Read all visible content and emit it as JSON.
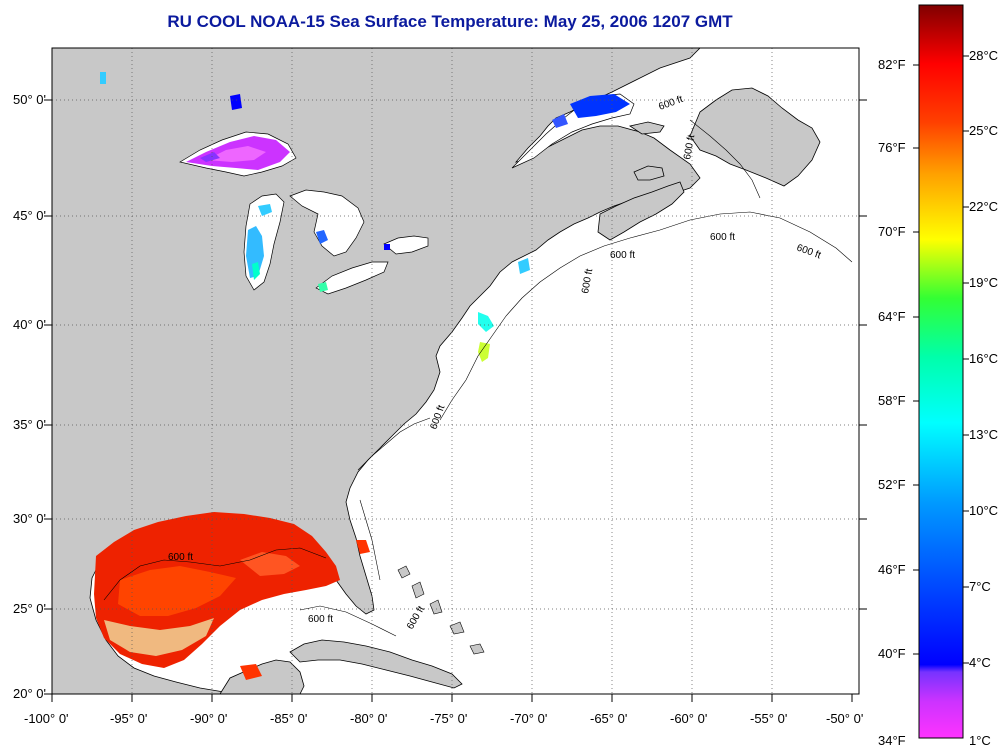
{
  "title": "RU COOL  NOAA-15  Sea Surface Temperature:  May 25, 2006 1207 GMT",
  "map": {
    "lon_range": [
      -100,
      -50
    ],
    "lat_range": [
      20,
      52.5
    ],
    "lon_labels": [
      "-100° 0'",
      "-95° 0'",
      "-90° 0'",
      "-85° 0'",
      "-80° 0'",
      "-75° 0'",
      "-70° 0'",
      "-65° 0'",
      "-60° 0'",
      "-55° 0'",
      "-50° 0'"
    ],
    "lat_labels": [
      "50° 0'",
      "45° 0'",
      "40° 0'",
      "35° 0'",
      "30° 0'",
      "25° 0'",
      "20° 0'"
    ],
    "contour_labels": [
      "600 ft",
      "600 ft",
      "600 ft",
      "600 ft",
      "600 ft",
      "600 ft",
      "600 ft",
      "600 ft",
      "600 ft",
      "600 ft"
    ],
    "grid": "dotted",
    "land_color": "#c8c8c8",
    "no_data_color": "#ffffff"
  },
  "colorbar": {
    "range_c": [
      1,
      30
    ],
    "fahrenheit_labels": [
      "82°F",
      "76°F",
      "70°F",
      "64°F",
      "58°F",
      "52°F",
      "46°F",
      "40°F",
      "34°F"
    ],
    "celsius_labels": [
      "28°C",
      "25°C",
      "22°C",
      "19°C",
      "16°C",
      "13°C",
      "10°C",
      "7°C",
      "4°C",
      "1°C"
    ],
    "colors": [
      "#ff33ff",
      "#9933ff",
      "#0000ff",
      "#0080ff",
      "#00ffff",
      "#00ff80",
      "#ffff00",
      "#ff8000",
      "#ff0000",
      "#800000"
    ]
  }
}
